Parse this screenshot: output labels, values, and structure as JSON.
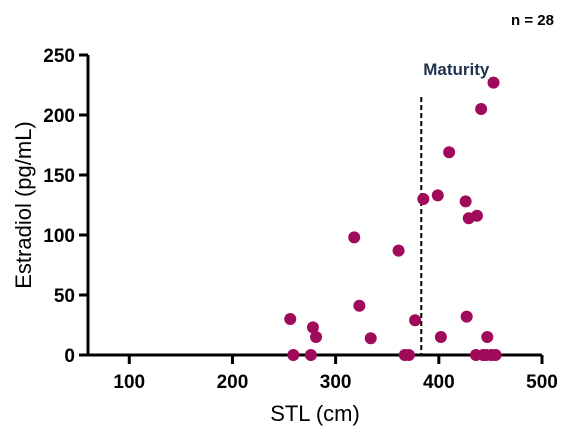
{
  "chart_data": {
    "type": "scatter",
    "xlabel": "STL (cm)",
    "ylabel": "Estradiol (pg/mL)",
    "xlim": [
      60,
      500
    ],
    "ylim": [
      0,
      250
    ],
    "x_ticks": [
      100,
      200,
      300,
      400,
      500
    ],
    "y_ticks": [
      0,
      50,
      100,
      150,
      200,
      250
    ],
    "grid": false,
    "annotation": "n = 28",
    "reference_line": {
      "orientation": "vertical",
      "x": 383,
      "y_end": 215,
      "label": "Maturity",
      "style": "dashed",
      "color": "#000000",
      "label_color": "#1f3350"
    },
    "marker_color": "#a00a5a",
    "points": [
      {
        "x": 256,
        "y": 30
      },
      {
        "x": 259,
        "y": 0
      },
      {
        "x": 276,
        "y": 0
      },
      {
        "x": 278,
        "y": 23
      },
      {
        "x": 281,
        "y": 15
      },
      {
        "x": 318,
        "y": 98
      },
      {
        "x": 323,
        "y": 41
      },
      {
        "x": 334,
        "y": 14
      },
      {
        "x": 361,
        "y": 87
      },
      {
        "x": 367,
        "y": 0
      },
      {
        "x": 371,
        "y": 0
      },
      {
        "x": 377,
        "y": 29
      },
      {
        "x": 385,
        "y": 130
      },
      {
        "x": 399,
        "y": 133
      },
      {
        "x": 402,
        "y": 15
      },
      {
        "x": 410,
        "y": 169
      },
      {
        "x": 426,
        "y": 128
      },
      {
        "x": 427,
        "y": 32
      },
      {
        "x": 429,
        "y": 114
      },
      {
        "x": 436,
        "y": 0
      },
      {
        "x": 437,
        "y": 116
      },
      {
        "x": 441,
        "y": 205
      },
      {
        "x": 443,
        "y": 0
      },
      {
        "x": 446,
        "y": 0
      },
      {
        "x": 447,
        "y": 15
      },
      {
        "x": 451,
        "y": 0
      },
      {
        "x": 453,
        "y": 227
      },
      {
        "x": 455,
        "y": 0
      }
    ]
  }
}
